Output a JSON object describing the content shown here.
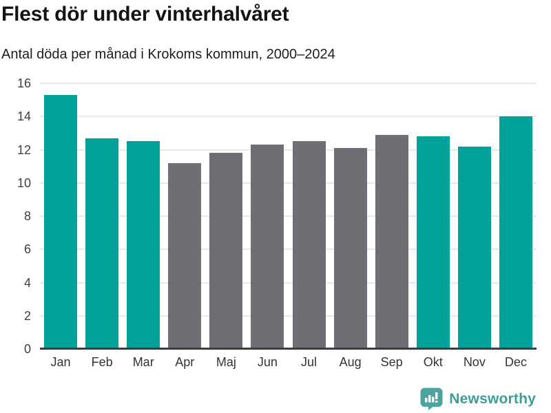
{
  "header": {
    "title": "Flest dör under vinterhalvåret",
    "subtitle": "Antal döda per månad i Krokoms kommun, 2000–2024"
  },
  "chart_data": {
    "type": "bar",
    "title": "Flest dör under vinterhalvåret",
    "subtitle": "Antal döda per månad i Krokoms kommun, 2000–2024",
    "categories": [
      "Jan",
      "Feb",
      "Mar",
      "Apr",
      "Maj",
      "Jun",
      "Jul",
      "Aug",
      "Sep",
      "Okt",
      "Nov",
      "Dec"
    ],
    "values": [
      15.3,
      12.7,
      12.5,
      11.2,
      11.8,
      12.3,
      12.5,
      12.1,
      12.9,
      12.8,
      12.2,
      14.0
    ],
    "bar_color_keys": [
      "teal",
      "teal",
      "teal",
      "gray",
      "gray",
      "gray",
      "gray",
      "gray",
      "gray",
      "teal",
      "teal",
      "teal"
    ],
    "colors": {
      "teal": "#00a29a",
      "gray": "#6e6e74"
    },
    "xlabel": "",
    "ylabel": "",
    "ylim": [
      0,
      16
    ],
    "yticks": [
      0,
      2,
      4,
      6,
      8,
      10,
      12,
      14,
      16
    ],
    "grid": true,
    "legend": false,
    "gridline_color": "#e8e8e8",
    "axis_line_color": "#3d3d3d"
  },
  "footer": {
    "brand": "Newsworthy",
    "brand_color": "#3d9e98",
    "icon_color": "#4ba49e"
  }
}
